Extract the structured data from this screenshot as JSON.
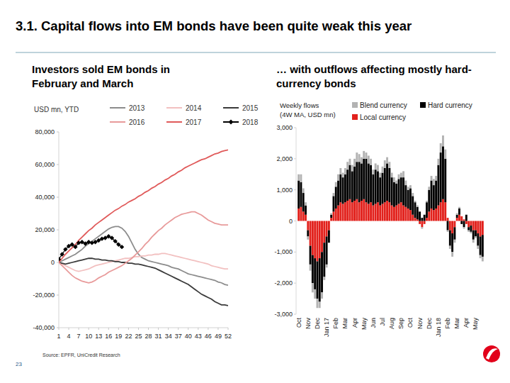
{
  "header": {
    "title": "3.1. Capital flows into EM bonds have been quite weak this year",
    "source": "Source: EPFR, UniCredit Research",
    "page_number": "23"
  },
  "chart_data": [
    {
      "type": "line",
      "title": "Investors sold EM bonds in February and March",
      "y_label": "USD mn, YTD",
      "x": [
        1,
        2,
        3,
        4,
        5,
        6,
        7,
        8,
        9,
        10,
        11,
        12,
        13,
        14,
        15,
        16,
        17,
        18,
        19,
        20,
        21,
        22,
        23,
        24,
        25,
        26,
        27,
        28,
        29,
        30,
        31,
        32,
        33,
        34,
        35,
        36,
        37,
        38,
        39,
        40,
        41,
        42,
        43,
        44,
        45,
        46,
        47,
        48,
        49,
        50,
        51,
        52
      ],
      "xlim": [
        1,
        52
      ],
      "xticks": [
        1,
        4,
        7,
        10,
        13,
        16,
        19,
        22,
        25,
        28,
        31,
        34,
        37,
        40,
        43,
        46,
        49,
        52
      ],
      "ylim": [
        -40000,
        80000
      ],
      "yticks": [
        {
          "value": -40000,
          "label": "-40,000"
        },
        {
          "value": -20000,
          "label": "-20,000"
        },
        0,
        {
          "value": 20000,
          "label": "20,000"
        },
        {
          "value": 40000,
          "label": "40,000"
        },
        {
          "value": 60000,
          "label": "60,000"
        },
        {
          "value": 80000,
          "label": "80,000"
        }
      ],
      "grid": false,
      "legend": "top",
      "series": [
        {
          "name": "2013",
          "color": "#8c8c8c",
          "values": [
            0,
            1000,
            2000,
            3000,
            4000,
            5000,
            6500,
            8000,
            10000,
            11500,
            13000,
            14500,
            16000,
            17500,
            19000,
            20500,
            21500,
            22000,
            22000,
            21000,
            19000,
            16000,
            12000,
            8000,
            5000,
            3000,
            2000,
            1000,
            500,
            0,
            -500,
            -1000,
            -1500,
            -2000,
            -3000,
            -3500,
            -4000,
            -5000,
            -6000,
            -7000,
            -7500,
            -8000,
            -8500,
            -9000,
            -9500,
            -10000,
            -10500,
            -11000,
            -12000,
            -12500,
            -13500,
            -14000
          ]
        },
        {
          "name": "2014",
          "color": "#f2c0c0",
          "values": [
            0,
            -1000,
            -2000,
            -3000,
            -4000,
            -5000,
            -5500,
            -5000,
            -4500,
            -4000,
            -3000,
            -2000,
            -1500,
            -1000,
            -500,
            0,
            500,
            1000,
            1500,
            2000,
            2500,
            2500,
            3000,
            3500,
            3500,
            4000,
            4000,
            4500,
            4500,
            5000,
            5000,
            5500,
            5500,
            5000,
            4500,
            4000,
            3500,
            3000,
            2500,
            2000,
            1500,
            1000,
            500,
            0,
            -500,
            -1000,
            -2000,
            -2500,
            -3000,
            -3500,
            -4000,
            -4000
          ]
        },
        {
          "name": "2015",
          "color": "#3a3a3a",
          "values": [
            0,
            -500,
            -1000,
            -500,
            0,
            500,
            1000,
            1500,
            2000,
            2500,
            2500,
            2000,
            2000,
            1500,
            1500,
            1000,
            1000,
            500,
            500,
            0,
            0,
            -500,
            -500,
            -1000,
            -1000,
            -1500,
            -2000,
            -2500,
            -3000,
            -3500,
            -4500,
            -5500,
            -6500,
            -7500,
            -8500,
            -9500,
            -10500,
            -11500,
            -12500,
            -13500,
            -15000,
            -16500,
            -18000,
            -19500,
            -20500,
            -21500,
            -22500,
            -24000,
            -25000,
            -26000,
            -26000,
            -26500
          ]
        },
        {
          "name": "2016",
          "color": "#e89a9a",
          "values": [
            0,
            -2000,
            -4000,
            -6000,
            -8000,
            -9500,
            -10500,
            -11500,
            -12000,
            -12500,
            -12000,
            -11000,
            -9500,
            -8500,
            -7500,
            -6000,
            -5000,
            -4000,
            -3000,
            -2000,
            -500,
            1000,
            2500,
            4500,
            6500,
            8500,
            11000,
            13000,
            15500,
            17500,
            19500,
            21000,
            23000,
            24500,
            26000,
            27500,
            28500,
            29500,
            30000,
            30500,
            31000,
            31000,
            30000,
            29000,
            27500,
            26000,
            25000,
            24000,
            23500,
            23000,
            23000,
            23000
          ]
        },
        {
          "name": "2017",
          "color": "#e05a5a",
          "values": [
            0,
            2500,
            5000,
            7000,
            9000,
            11000,
            13500,
            15500,
            17500,
            19500,
            21000,
            23000,
            24500,
            26000,
            27500,
            29000,
            30500,
            32000,
            33000,
            34500,
            35500,
            37000,
            38000,
            39000,
            40500,
            41500,
            43000,
            44000,
            45500,
            46500,
            48000,
            49000,
            50500,
            51500,
            53000,
            54000,
            55500,
            56500,
            58000,
            59000,
            60000,
            61000,
            62000,
            63000,
            63500,
            64500,
            65500,
            66500,
            67000,
            68000,
            68500,
            69000
          ]
        },
        {
          "name": "2018",
          "color": "#000000",
          "marker": "diamond",
          "values": [
            2000,
            5000,
            8000,
            10000,
            11000,
            9500,
            12000,
            12500,
            11500,
            12500,
            12000,
            12500,
            13500,
            14500,
            15000,
            16000,
            15000,
            13000,
            11000,
            9500,
            null,
            null,
            null,
            null,
            null,
            null,
            null,
            null,
            null,
            null,
            null,
            null,
            null,
            null,
            null,
            null,
            null,
            null,
            null,
            null,
            null,
            null,
            null,
            null,
            null,
            null,
            null,
            null,
            null,
            null,
            null,
            null
          ]
        }
      ]
    },
    {
      "type": "bar",
      "stacked": true,
      "title": "… with outflows affecting mostly hard-currency bonds",
      "y_label": "Weekly flows",
      "y_unit": "(4W MA, USD mn)",
      "categories": [
        "Oct",
        null,
        null,
        null,
        "Nov",
        null,
        null,
        null,
        "Dec",
        null,
        null,
        null,
        "Jan 17",
        null,
        null,
        null,
        "Feb",
        null,
        null,
        null,
        "Mar",
        null,
        null,
        null,
        "Apr",
        null,
        null,
        null,
        "May",
        null,
        null,
        null,
        "Jun",
        null,
        null,
        null,
        "Jul",
        null,
        null,
        null,
        "Aug",
        null,
        null,
        null,
        "Sep",
        null,
        null,
        null,
        "Oct",
        null,
        null,
        null,
        "Nov",
        null,
        null,
        null,
        "Dec",
        null,
        null,
        null,
        "Jan 18",
        null,
        null,
        null,
        "Feb",
        null,
        null,
        null,
        "Mar",
        null,
        null,
        null,
        "Apr",
        null,
        null,
        null,
        "May",
        null,
        null,
        null
      ],
      "ylim": [
        -3000,
        3000
      ],
      "yticks": [
        {
          "value": -3000,
          "label": "-3,000"
        },
        {
          "value": -2000,
          "label": "-2,000"
        },
        {
          "value": -1000,
          "label": "-1,000"
        },
        0,
        {
          "value": 1000,
          "label": "1,000"
        },
        {
          "value": 2000,
          "label": "2,000"
        },
        {
          "value": 3000,
          "label": "3,000"
        }
      ],
      "grid": false,
      "legend": "top",
      "series": [
        {
          "name": "Blend currency",
          "color": "#b3b3b3",
          "values": [
            200,
            250,
            150,
            100,
            -100,
            -200,
            -300,
            -300,
            -300,
            -200,
            -200,
            -100,
            -100,
            0,
            50,
            100,
            150,
            200,
            200,
            150,
            200,
            250,
            200,
            200,
            250,
            300,
            250,
            200,
            250,
            200,
            250,
            200,
            150,
            200,
            200,
            150,
            200,
            250,
            200,
            200,
            150,
            150,
            100,
            150,
            150,
            200,
            150,
            100,
            100,
            100,
            50,
            50,
            0,
            -50,
            0,
            50,
            100,
            150,
            200,
            150,
            200,
            300,
            350,
            300,
            -50,
            -100,
            -150,
            -100,
            50,
            50,
            0,
            -50,
            0,
            -50,
            -50,
            -100,
            -50,
            -100,
            -100,
            -150
          ]
        },
        {
          "name": "Hard currency",
          "color": "#000000",
          "values": [
            900,
            800,
            600,
            300,
            -200,
            -600,
            -900,
            -1000,
            -1200,
            -1400,
            -1300,
            -1100,
            -900,
            -400,
            100,
            500,
            700,
            800,
            900,
            850,
            900,
            1000,
            1100,
            1000,
            1100,
            1200,
            1300,
            1200,
            1300,
            1400,
            1300,
            1200,
            1000,
            1100,
            1000,
            900,
            1000,
            1100,
            1200,
            1100,
            900,
            800,
            700,
            800,
            800,
            900,
            700,
            600,
            700,
            600,
            500,
            400,
            300,
            100,
            200,
            500,
            700,
            900,
            800,
            900,
            1300,
            1600,
            1700,
            1400,
            -300,
            -500,
            -600,
            -400,
            100,
            200,
            -100,
            -200,
            200,
            -100,
            -200,
            -300,
            -200,
            -400,
            -600,
            -700
          ]
        },
        {
          "name": "Local currency",
          "color": "#e2211c",
          "values": [
            400,
            450,
            300,
            200,
            -300,
            -800,
            -1100,
            -1200,
            -1300,
            -1200,
            -1000,
            -700,
            -500,
            -300,
            100,
            300,
            400,
            500,
            600,
            550,
            600,
            650,
            700,
            600,
            650,
            700,
            600,
            650,
            700,
            600,
            550,
            600,
            500,
            550,
            600,
            500,
            550,
            600,
            650,
            600,
            500,
            450,
            500,
            550,
            600,
            500,
            450,
            400,
            350,
            200,
            100,
            50,
            -100,
            -200,
            -100,
            100,
            300,
            400,
            350,
            400,
            500,
            600,
            700,
            600,
            100,
            -300,
            -400,
            -200,
            100,
            200,
            150,
            50,
            -100,
            -200,
            -150,
            -300,
            -300,
            -400,
            -500,
            -450
          ]
        }
      ]
    }
  ]
}
